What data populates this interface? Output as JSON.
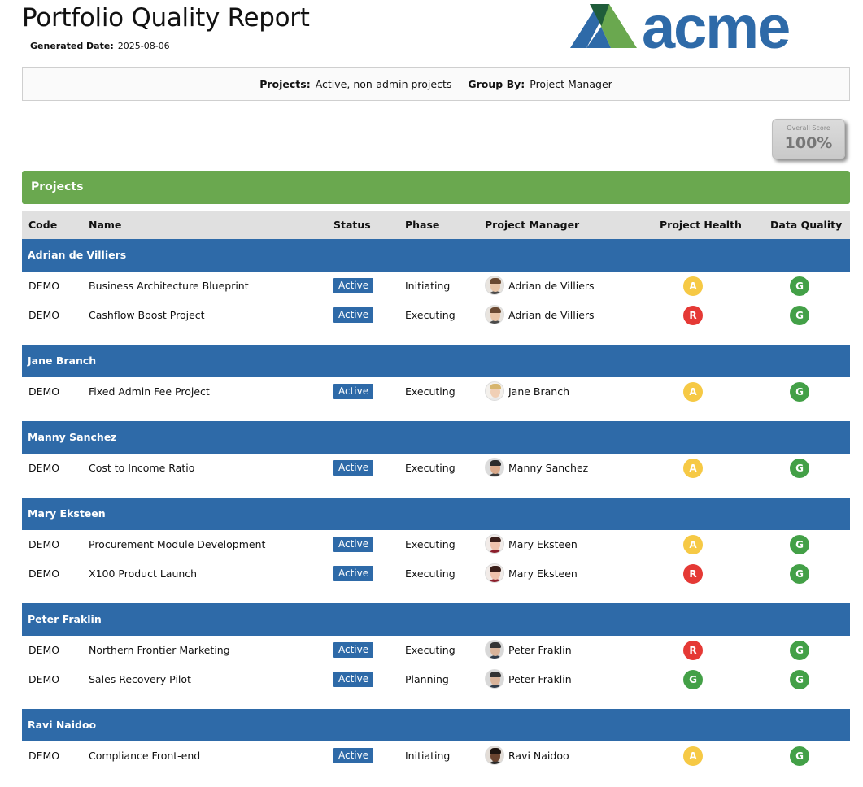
{
  "header": {
    "title": "Portfolio Quality Report",
    "generated_label": "Generated Date:",
    "generated_value": "2025-08-06",
    "logo_text": "acme"
  },
  "filters": {
    "projects_label": "Projects:",
    "projects_value": "Active, non-admin projects",
    "group_label": "Group By:",
    "group_value": "Project Manager"
  },
  "score": {
    "label": "Overall Score",
    "value": "100%"
  },
  "section_title": "Projects",
  "columns": {
    "code": "Code",
    "name": "Name",
    "status": "Status",
    "phase": "Phase",
    "pm": "Project Manager",
    "health": "Project Health",
    "dq": "Data Quality"
  },
  "colors": {
    "group_bar": "#2e6aa8",
    "section_bar": "#6aa84f",
    "amber": "#f6c945",
    "red": "#e53935",
    "green": "#43a047"
  },
  "groups": [
    {
      "manager": "Adrian de Villiers",
      "projects": [
        {
          "code": "DEMO",
          "name": "Business Architecture Blueprint",
          "status": "Active",
          "phase": "Initiating",
          "pm": "Adrian de Villiers",
          "avatar": "avatar-male-light-icon",
          "health": "A",
          "dq": "G"
        },
        {
          "code": "DEMO",
          "name": "Cashflow Boost Project",
          "status": "Active",
          "phase": "Executing",
          "pm": "Adrian de Villiers",
          "avatar": "avatar-male-light-icon",
          "health": "R",
          "dq": "G"
        }
      ]
    },
    {
      "manager": "Jane Branch",
      "projects": [
        {
          "code": "DEMO",
          "name": "Fixed Admin Fee Project",
          "status": "Active",
          "phase": "Executing",
          "pm": "Jane Branch",
          "avatar": "avatar-female-blonde-icon",
          "health": "A",
          "dq": "G"
        }
      ]
    },
    {
      "manager": "Manny Sanchez",
      "projects": [
        {
          "code": "DEMO",
          "name": "Cost to Income Ratio",
          "status": "Active",
          "phase": "Executing",
          "pm": "Manny Sanchez",
          "avatar": "avatar-male-dark-hair-icon",
          "health": "A",
          "dq": "G"
        }
      ]
    },
    {
      "manager": "Mary Eksteen",
      "projects": [
        {
          "code": "DEMO",
          "name": "Procurement Module Development",
          "status": "Active",
          "phase": "Executing",
          "pm": "Mary Eksteen",
          "avatar": "avatar-female-dark-hair-icon",
          "health": "A",
          "dq": "G"
        },
        {
          "code": "DEMO",
          "name": "X100 Product Launch",
          "status": "Active",
          "phase": "Executing",
          "pm": "Mary Eksteen",
          "avatar": "avatar-female-dark-hair-icon",
          "health": "R",
          "dq": "G"
        }
      ]
    },
    {
      "manager": "Peter Fraklin",
      "projects": [
        {
          "code": "DEMO",
          "name": "Northern Frontier Marketing",
          "status": "Active",
          "phase": "Executing",
          "pm": "Peter Fraklin",
          "avatar": "avatar-male-glasses-icon",
          "health": "R",
          "dq": "G"
        },
        {
          "code": "DEMO",
          "name": "Sales Recovery Pilot",
          "status": "Active",
          "phase": "Planning",
          "pm": "Peter Fraklin",
          "avatar": "avatar-male-glasses-icon",
          "health": "G",
          "dq": "G"
        }
      ]
    },
    {
      "manager": "Ravi Naidoo",
      "projects": [
        {
          "code": "DEMO",
          "name": "Compliance Front-end",
          "status": "Active",
          "phase": "Initiating",
          "pm": "Ravi Naidoo",
          "avatar": "avatar-male-dark-skin-icon",
          "health": "A",
          "dq": "G"
        }
      ]
    }
  ]
}
